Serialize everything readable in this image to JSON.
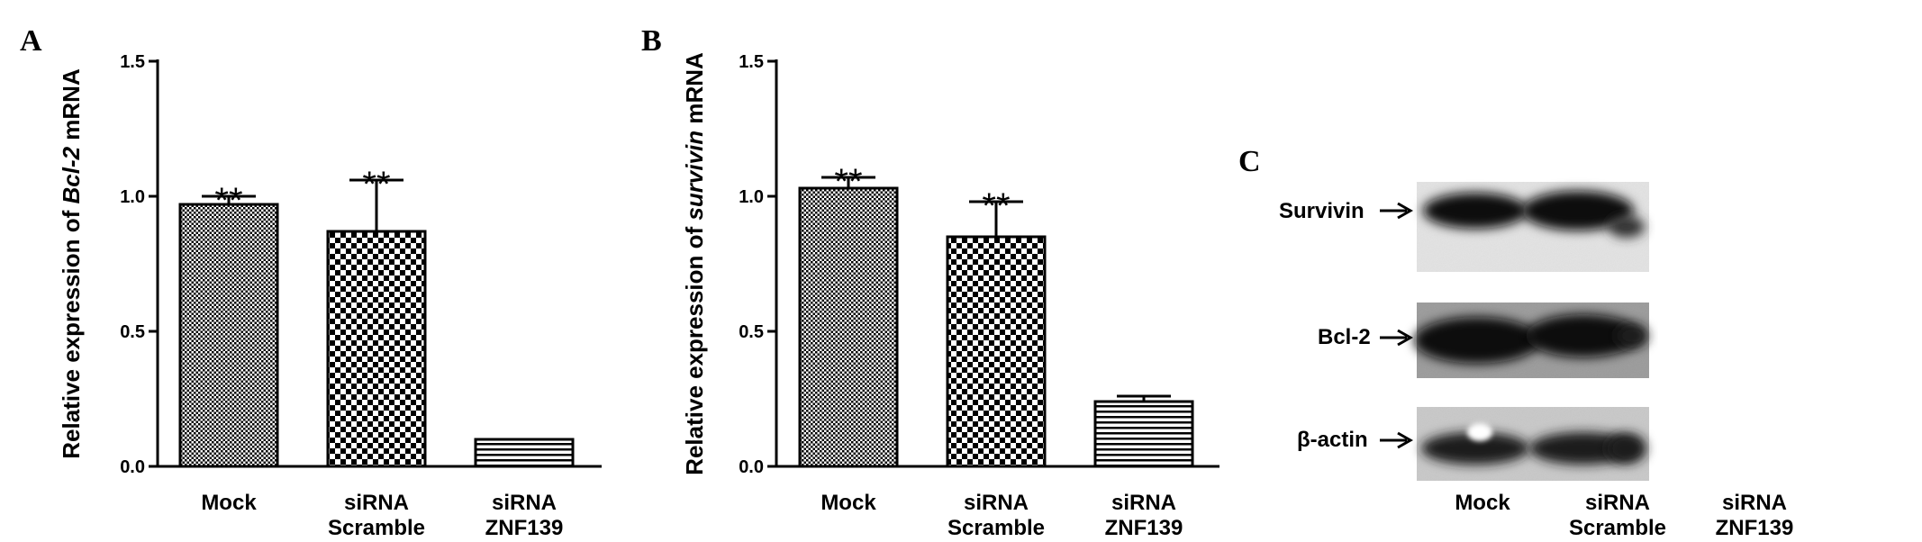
{
  "panels": {
    "a": "A",
    "b": "B",
    "c": "C"
  },
  "chart_data": [
    {
      "type": "bar",
      "panel": "A",
      "categories": [
        [
          "Mock"
        ],
        [
          "siRNA",
          "Scramble"
        ],
        [
          "siRNA",
          "ZNF139"
        ]
      ],
      "values": [
        0.97,
        0.87,
        0.1
      ],
      "errors": [
        0.03,
        0.19,
        0.0
      ],
      "annotations": [
        "**",
        "**",
        ""
      ],
      "ylabel_parts": [
        {
          "text": "Relative expression of ",
          "italic": false
        },
        {
          "text": "Bcl-2",
          "italic": true
        },
        {
          "text": " mRNA",
          "italic": false
        }
      ],
      "ylim": [
        0,
        1.5
      ],
      "yticks": [
        "0.0",
        "0.5",
        "1.0",
        "1.5"
      ],
      "ytick_values": [
        0,
        0.5,
        1.0,
        1.5
      ],
      "patterns": [
        "dots-fine",
        "checker",
        "hlines"
      ]
    },
    {
      "type": "bar",
      "panel": "B",
      "categories": [
        [
          "Mock"
        ],
        [
          "siRNA",
          "Scramble"
        ],
        [
          "siRNA",
          "ZNF139"
        ]
      ],
      "values": [
        1.03,
        0.85,
        0.24
      ],
      "errors": [
        0.04,
        0.13,
        0.02
      ],
      "annotations": [
        "**",
        "**",
        ""
      ],
      "ylabel_parts": [
        {
          "text": "Relative expression of ",
          "italic": false
        },
        {
          "text": "survivin",
          "italic": true
        },
        {
          "text": " mRNA",
          "italic": false
        }
      ],
      "ylim": [
        0,
        1.5
      ],
      "yticks": [
        "0.0",
        "0.5",
        "1.0",
        "1.5"
      ],
      "ytick_values": [
        0,
        0.5,
        1.0,
        1.5
      ],
      "patterns": [
        "dots-fine",
        "checker",
        "hlines"
      ]
    }
  ],
  "blot": {
    "rows": [
      "Survivin",
      "Bcl-2",
      "β-actin"
    ],
    "lanes": [
      [
        "Mock"
      ],
      [
        "siRNA",
        "Scramble"
      ],
      [
        "siRNA",
        "ZNF139"
      ]
    ]
  }
}
